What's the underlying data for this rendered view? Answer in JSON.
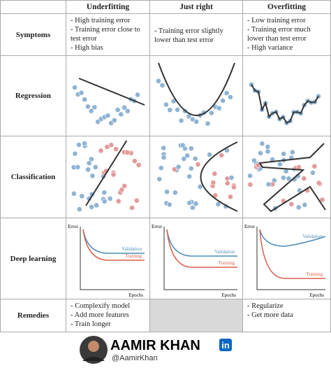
{
  "columns": [
    "Underfitting",
    "Just right",
    "Overfitting"
  ],
  "rows": {
    "symptoms": {
      "label": "Symptoms",
      "cells": [
        [
          "- High training error",
          "- Training error close to test error",
          "- High bias"
        ],
        [
          "- Training error slightly lower than test error"
        ],
        [
          "- Low training error",
          "- Training error much lower than test error",
          "- High variance"
        ]
      ]
    },
    "regression": {
      "label": "Regression"
    },
    "classification": {
      "label": "Classification"
    },
    "deep_learning": {
      "label": "Deep learning",
      "plots": [
        {
          "y_label": "Error",
          "x_label": "Epochs",
          "curves": [
            "Validation",
            "Training"
          ]
        },
        {
          "y_label": "Error",
          "x_label": "Epochs",
          "curves": [
            "Validation",
            "Training"
          ]
        },
        {
          "y_label": "Error",
          "x_label": "Epochs",
          "curves": [
            "Validation",
            "Training"
          ]
        }
      ]
    },
    "remedies": {
      "label": "Remedies",
      "cells": [
        [
          "- Complexify model",
          "- Add more features",
          "- Train longer"
        ],
        [],
        [
          "- Regularize",
          "- Get more data"
        ]
      ]
    }
  },
  "footer": {
    "name": "AAMIR KHAN",
    "handle": "@AamirKhan",
    "badge": "in"
  }
}
